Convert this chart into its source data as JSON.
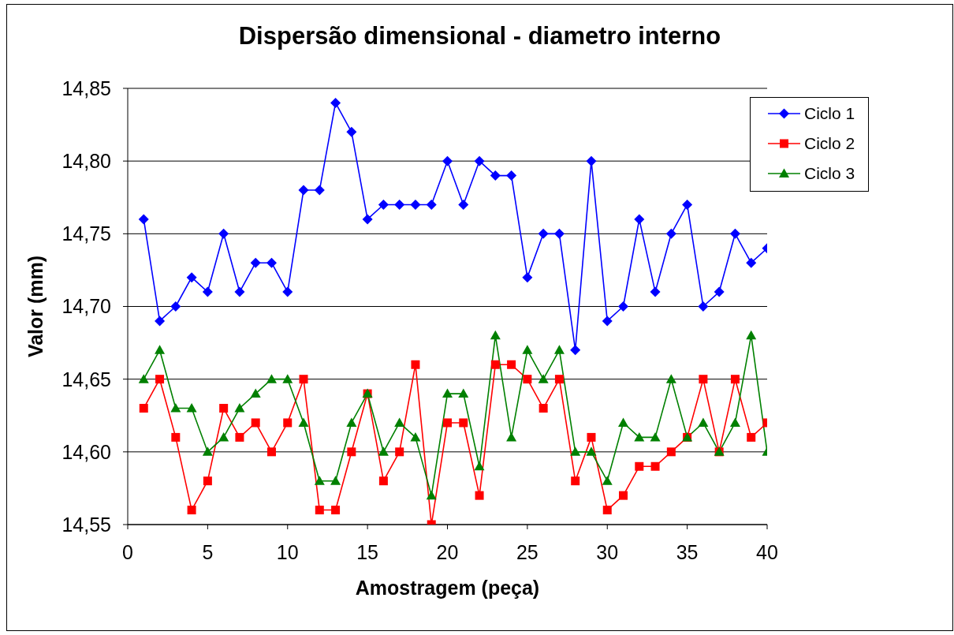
{
  "chart_data": {
    "type": "line",
    "title": "Dispersão dimensional - diametro interno",
    "xlabel": "Amostragem (peça)",
    "ylabel": "Valor (mm)",
    "x": [
      1,
      2,
      3,
      4,
      5,
      6,
      7,
      8,
      9,
      10,
      11,
      12,
      13,
      14,
      15,
      16,
      17,
      18,
      19,
      20,
      21,
      22,
      23,
      24,
      25,
      26,
      27,
      28,
      29,
      30,
      31,
      32,
      33,
      34,
      35,
      36,
      37,
      38,
      39,
      40
    ],
    "series": [
      {
        "name": "Ciclo 1",
        "color": "#0000ff",
        "marker": "diamond",
        "values": [
          14.76,
          14.69,
          14.7,
          14.72,
          14.71,
          14.75,
          14.71,
          14.73,
          14.73,
          14.71,
          14.78,
          14.78,
          14.84,
          14.82,
          14.76,
          14.77,
          14.77,
          14.77,
          14.77,
          14.8,
          14.77,
          14.8,
          14.79,
          14.79,
          14.72,
          14.75,
          14.75,
          14.67,
          14.8,
          14.69,
          14.7,
          14.76,
          14.71,
          14.75,
          14.77,
          14.7,
          14.71,
          14.75,
          14.73,
          14.74
        ]
      },
      {
        "name": "Ciclo 2",
        "color": "#ff0000",
        "marker": "square",
        "values": [
          14.63,
          14.65,
          14.61,
          14.56,
          14.58,
          14.63,
          14.61,
          14.62,
          14.6,
          14.62,
          14.65,
          14.56,
          14.56,
          14.6,
          14.64,
          14.58,
          14.6,
          14.66,
          14.55,
          14.62,
          14.62,
          14.57,
          14.66,
          14.66,
          14.65,
          14.63,
          14.65,
          14.58,
          14.61,
          14.56,
          14.57,
          14.59,
          14.59,
          14.6,
          14.61,
          14.65,
          14.6,
          14.65,
          14.61,
          14.62
        ]
      },
      {
        "name": "Ciclo 3",
        "color": "#008000",
        "marker": "triangle",
        "values": [
          14.65,
          14.67,
          14.63,
          14.63,
          14.6,
          14.61,
          14.63,
          14.64,
          14.65,
          14.65,
          14.62,
          14.58,
          14.58,
          14.62,
          14.64,
          14.6,
          14.62,
          14.61,
          14.57,
          14.64,
          14.64,
          14.59,
          14.68,
          14.61,
          14.67,
          14.65,
          14.67,
          14.6,
          14.6,
          14.58,
          14.62,
          14.61,
          14.61,
          14.65,
          14.61,
          14.62,
          14.6,
          14.62,
          14.68,
          14.6
        ]
      }
    ],
    "xlim": [
      0,
      40
    ],
    "xticks": [
      0,
      5,
      10,
      15,
      20,
      25,
      30,
      35,
      40
    ],
    "ylim": [
      14.55,
      14.85
    ],
    "yticks": [
      {
        "value": 14.55,
        "label": "14,55"
      },
      {
        "value": 14.6,
        "label": "14,60"
      },
      {
        "value": 14.65,
        "label": "14,65"
      },
      {
        "value": 14.7,
        "label": "14,70"
      },
      {
        "value": 14.75,
        "label": "14,75"
      },
      {
        "value": 14.8,
        "label": "14,80"
      },
      {
        "value": 14.85,
        "label": "14,85"
      }
    ],
    "grid": "y",
    "legend": "top right"
  }
}
